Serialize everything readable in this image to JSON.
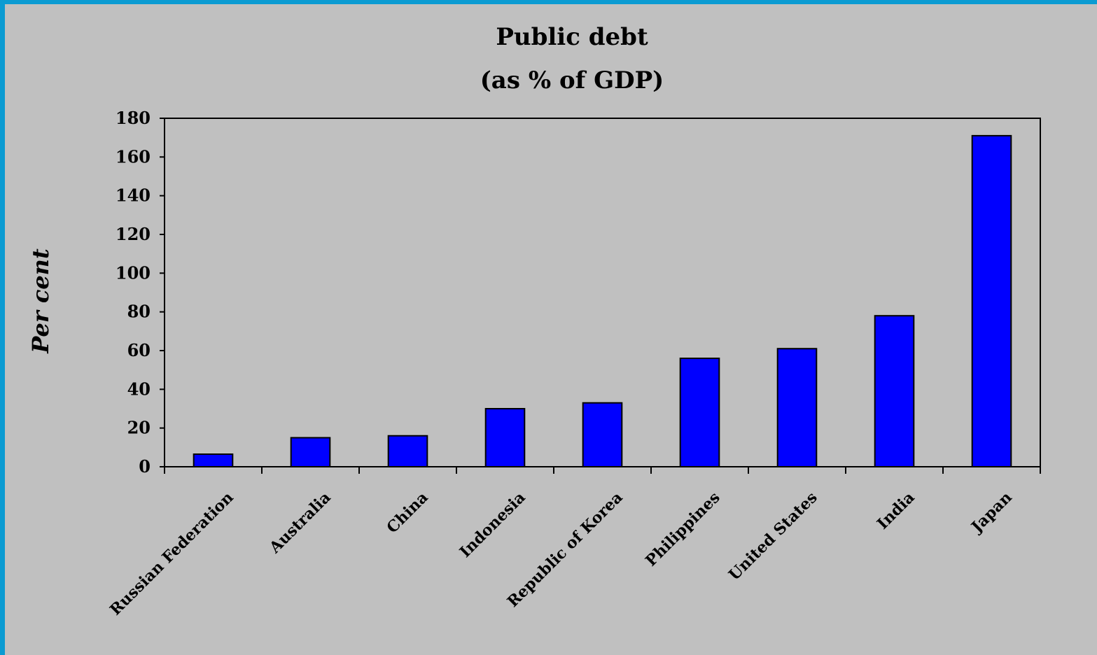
{
  "chart_data": {
    "type": "bar",
    "title": "Public debt",
    "subtitle": "(as % of GDP)",
    "xlabel": "",
    "ylabel": "Per cent",
    "categories": [
      "Russian Federation",
      "Australia",
      "China",
      "Indonesia",
      "Republic of Korea",
      "Philippines",
      "United States",
      "India",
      "Japan"
    ],
    "values": [
      6.5,
      15,
      16,
      30,
      33,
      56,
      61,
      78,
      171
    ],
    "ylim": [
      0,
      180
    ],
    "yticks": [
      "0",
      "20",
      "40",
      "60",
      "80",
      "100",
      "120",
      "140",
      "160",
      "180"
    ],
    "grid": false,
    "legend": "none",
    "bar_color": "#0000ff"
  },
  "colors": {
    "slide_border": "#0b9bd2",
    "background": "#c0c0c0"
  }
}
